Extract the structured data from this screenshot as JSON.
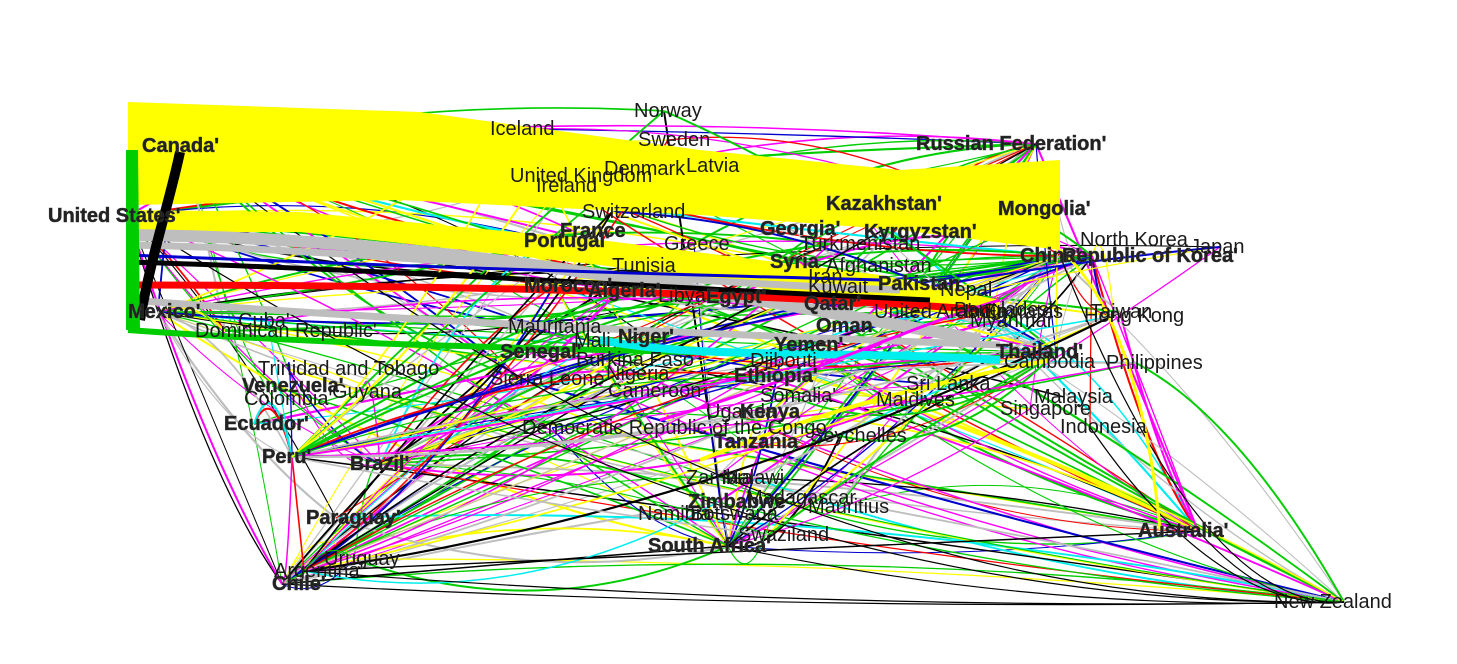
{
  "diagram": {
    "type": "flow-network",
    "colors": {
      "yellow": "#ffff00",
      "black": "#000000",
      "gray": "#bebebe",
      "red": "#ff0000",
      "green": "#00cd00",
      "blue": "#0000cd",
      "cyan": "#00eeee",
      "magenta": "#ff00ff"
    },
    "nodes": [
      {
        "id": "united-states",
        "label": "United States'"
      },
      {
        "id": "canada",
        "label": "Canada'"
      },
      {
        "id": "mexico",
        "label": "Mexico'"
      },
      {
        "id": "cuba",
        "label": "Cuba'"
      },
      {
        "id": "dominican-republic",
        "label": "Dominican Republic'"
      },
      {
        "id": "trinidad",
        "label": "Trinidad and Tobago"
      },
      {
        "id": "venezuela",
        "label": "Venezuela'"
      },
      {
        "id": "colombia",
        "label": "Colombia'"
      },
      {
        "id": "guyana",
        "label": "Guyana"
      },
      {
        "id": "ecuador",
        "label": "Ecuador'"
      },
      {
        "id": "peru",
        "label": "Peru'"
      },
      {
        "id": "brazil",
        "label": "Brazil'"
      },
      {
        "id": "paraguay",
        "label": "Paraguay'"
      },
      {
        "id": "uruguay",
        "label": "Uruguay"
      },
      {
        "id": "argentina",
        "label": "Argentina'"
      },
      {
        "id": "chile",
        "label": "Chile'"
      },
      {
        "id": "iceland",
        "label": "Iceland"
      },
      {
        "id": "norway",
        "label": "Norway"
      },
      {
        "id": "sweden",
        "label": "Sweden"
      },
      {
        "id": "denmark",
        "label": "Denmark"
      },
      {
        "id": "latvia",
        "label": "Latvia"
      },
      {
        "id": "united-kingdom",
        "label": "United Kingdom"
      },
      {
        "id": "ireland",
        "label": "Ireland"
      },
      {
        "id": "switzerland",
        "label": "Switzerland"
      },
      {
        "id": "portugal",
        "label": "Portugal'"
      },
      {
        "id": "france",
        "label": "France"
      },
      {
        "id": "greece",
        "label": "Greece"
      },
      {
        "id": "georgia",
        "label": "Georgia'"
      },
      {
        "id": "kazakhstan",
        "label": "Kazakhstan'"
      },
      {
        "id": "kyrgyzstan",
        "label": "Kyrgyzstan'"
      },
      {
        "id": "turkmenistan",
        "label": "Turkmenistan"
      },
      {
        "id": "afghanistan",
        "label": "Afghanistan"
      },
      {
        "id": "russia",
        "label": "Russian Federation'"
      },
      {
        "id": "mongolia",
        "label": "Mongolia'"
      },
      {
        "id": "china",
        "label": "China'"
      },
      {
        "id": "korea",
        "label": "Republic of Korea'"
      },
      {
        "id": "north-korea",
        "label": "North Korea"
      },
      {
        "id": "japan",
        "label": "Japan"
      },
      {
        "id": "morocco",
        "label": "Morocco'"
      },
      {
        "id": "algeria",
        "label": "Algeria'"
      },
      {
        "id": "tunisia",
        "label": "Tunisia"
      },
      {
        "id": "libya",
        "label": "Libya"
      },
      {
        "id": "egypt",
        "label": "Egypt'"
      },
      {
        "id": "syria",
        "label": "Syria"
      },
      {
        "id": "iran",
        "label": "Iran"
      },
      {
        "id": "kuwait",
        "label": "Kuwait"
      },
      {
        "id": "qatar",
        "label": "Qatar'"
      },
      {
        "id": "uae",
        "label": "United Arab Emirates"
      },
      {
        "id": "pakistan",
        "label": "Pakistan"
      },
      {
        "id": "nepal",
        "label": "Nepal"
      },
      {
        "id": "india",
        "label": "India"
      },
      {
        "id": "bangladesh",
        "label": "Bangladesh"
      },
      {
        "id": "myanmar",
        "label": "Myanmar"
      },
      {
        "id": "taiwan",
        "label": "Taiwan"
      },
      {
        "id": "hong-kong",
        "label": "Hong Kong"
      },
      {
        "id": "mauritania",
        "label": "Mauritania"
      },
      {
        "id": "mali",
        "label": "Mali"
      },
      {
        "id": "niger",
        "label": "Niger'"
      },
      {
        "id": "senegal",
        "label": "Senegal'"
      },
      {
        "id": "burkina-faso",
        "label": "Burkina Faso"
      },
      {
        "id": "sierra-leone",
        "label": "Sierra Leone"
      },
      {
        "id": "nigeria",
        "label": "Nigeria"
      },
      {
        "id": "cameroon",
        "label": "Cameroon"
      },
      {
        "id": "oman",
        "label": "Oman"
      },
      {
        "id": "yemen",
        "label": "Yemen'"
      },
      {
        "id": "djibouti",
        "label": "Djibouti"
      },
      {
        "id": "ethiopia",
        "label": "Ethiopia'"
      },
      {
        "id": "somalia",
        "label": "Somalia'"
      },
      {
        "id": "uganda",
        "label": "Uganda"
      },
      {
        "id": "kenya",
        "label": "Kenya"
      },
      {
        "id": "drc",
        "label": "Democratic Republic of the Congo"
      },
      {
        "id": "seychelles",
        "label": "Seychelles"
      },
      {
        "id": "tanzania",
        "label": "Tanzania"
      },
      {
        "id": "zambia",
        "label": "Zambia"
      },
      {
        "id": "malawi",
        "label": "Malawi"
      },
      {
        "id": "zimbabwe",
        "label": "Zimbabwe"
      },
      {
        "id": "madagascar",
        "label": "Madagascar"
      },
      {
        "id": "mauritius",
        "label": "Mauritius"
      },
      {
        "id": "namibia",
        "label": "Namibia"
      },
      {
        "id": "botswana",
        "label": "Botswana"
      },
      {
        "id": "swaziland",
        "label": "Swaziland"
      },
      {
        "id": "south-africa",
        "label": "South Africa'"
      },
      {
        "id": "thailand",
        "label": "Thailand'"
      },
      {
        "id": "cambodia",
        "label": "Cambodia"
      },
      {
        "id": "philippines",
        "label": "Philippines"
      },
      {
        "id": "sri-lanka",
        "label": "Sri Lanka"
      },
      {
        "id": "maldives",
        "label": "Maldives"
      },
      {
        "id": "malaysia",
        "label": "Malaysia"
      },
      {
        "id": "singapore",
        "label": "Singapore"
      },
      {
        "id": "indonesia",
        "label": "Indonesia"
      },
      {
        "id": "australia",
        "label": "Australia'"
      },
      {
        "id": "new-zealand",
        "label": "New Zealand"
      }
    ]
  }
}
